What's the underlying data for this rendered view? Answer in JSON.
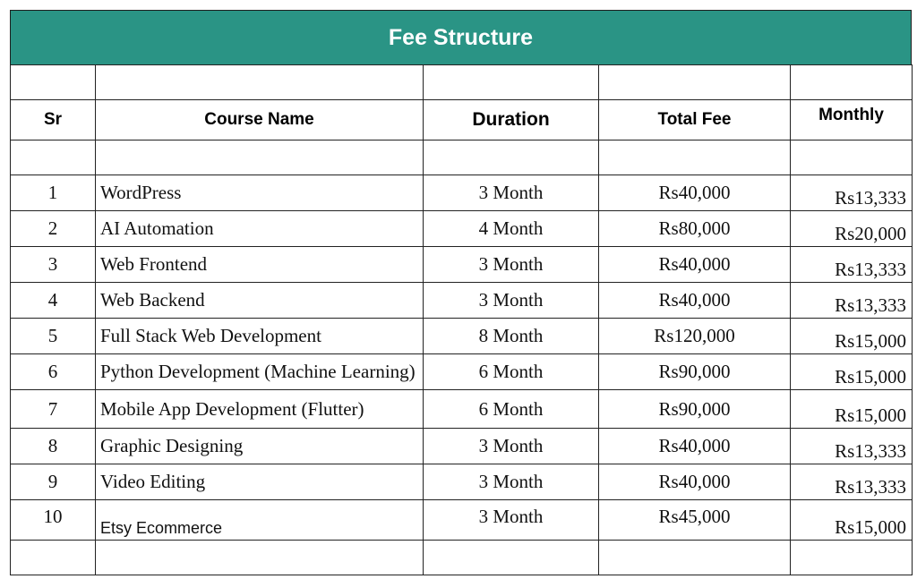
{
  "title": "Fee Structure",
  "colors": {
    "header_bg": "#2a9485",
    "header_text": "#ffffff"
  },
  "headers": {
    "sr": "Sr",
    "course": "Course Name",
    "duration": "Duration",
    "total_fee": "Total Fee",
    "monthly": "Monthly"
  },
  "rows": [
    {
      "sr": "1",
      "course": "WordPress",
      "duration": "3 Month",
      "total_fee": "Rs40,000",
      "monthly": "Rs13,333"
    },
    {
      "sr": "2",
      "course": "AI Automation",
      "duration": "4 Month",
      "total_fee": "Rs80,000",
      "monthly": "Rs20,000"
    },
    {
      "sr": "3",
      "course": "Web Frontend",
      "duration": "3 Month",
      "total_fee": "Rs40,000",
      "monthly": "Rs13,333"
    },
    {
      "sr": "4",
      "course": "Web Backend",
      "duration": "3 Month",
      "total_fee": "Rs40,000",
      "monthly": "Rs13,333"
    },
    {
      "sr": "5",
      "course": "Full Stack Web Development",
      "duration": "8 Month",
      "total_fee": "Rs120,000",
      "monthly": "Rs15,000"
    },
    {
      "sr": "6",
      "course": "Python Development (Machine Learning)",
      "duration": "6 Month",
      "total_fee": "Rs90,000",
      "monthly": "Rs15,000"
    },
    {
      "sr": "7",
      "course": "Mobile App Development (Flutter)",
      "duration": "6 Month",
      "total_fee": "Rs90,000",
      "monthly": "Rs15,000"
    },
    {
      "sr": "8",
      "course": "Graphic Designing",
      "duration": "3 Month",
      "total_fee": "Rs40,000",
      "monthly": "Rs13,333"
    },
    {
      "sr": "9",
      "course": "Video Editing",
      "duration": "3 Month",
      "total_fee": "Rs40,000",
      "monthly": "Rs13,333"
    },
    {
      "sr": "10",
      "course": "Etsy Ecommerce",
      "duration": "3 Month",
      "total_fee": "Rs45,000",
      "monthly": "Rs15,000"
    }
  ]
}
